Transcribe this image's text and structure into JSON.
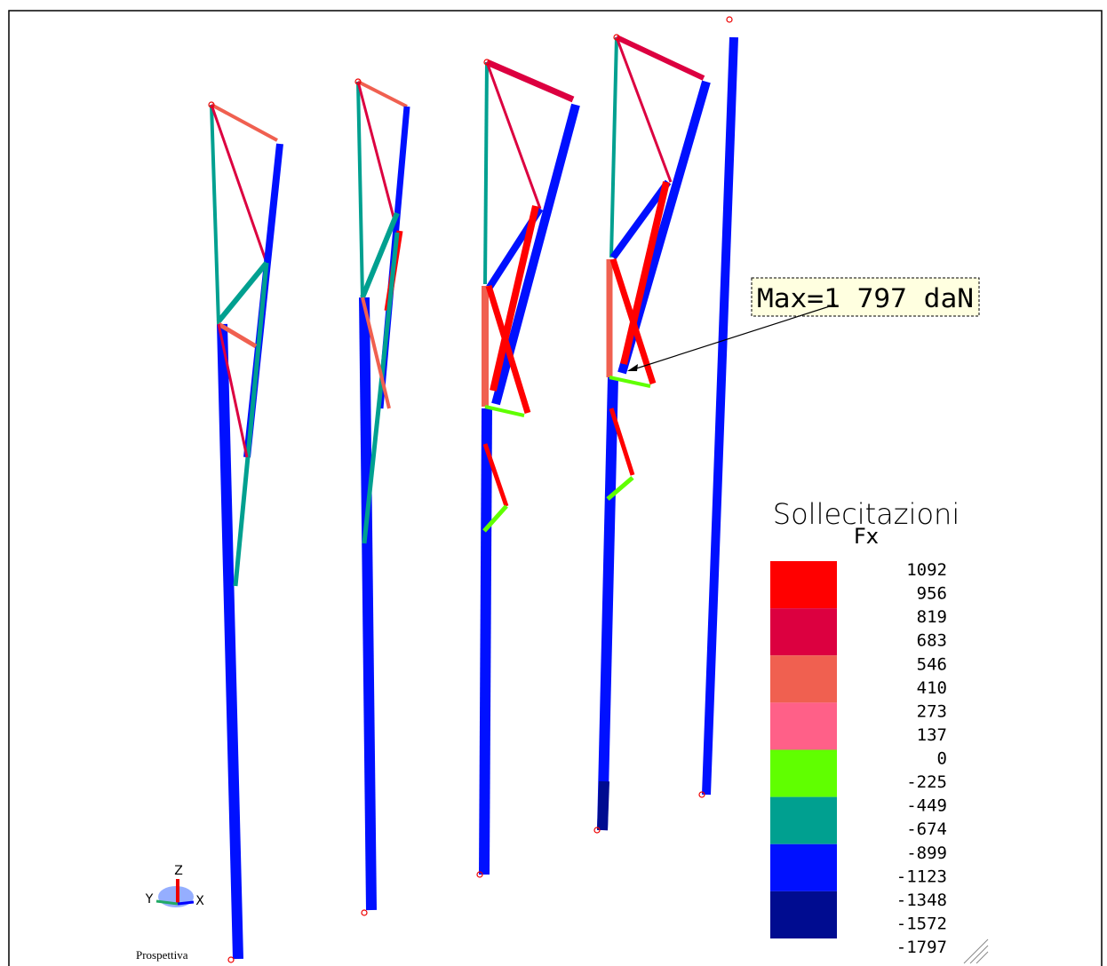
{
  "view": {
    "label": "Prospettiva",
    "axes": {
      "z": "Z",
      "y": "Y",
      "x": "X"
    }
  },
  "annotation": {
    "text": "Max=1 797 daN"
  },
  "legend": {
    "title": "Sollecitazioni",
    "subtitle": "Fx",
    "labels": [
      1092,
      956,
      819,
      683,
      546,
      410,
      273,
      137,
      0,
      -225,
      -449,
      -674,
      -899,
      -1123,
      -1348,
      -1572,
      -1797
    ],
    "colors": [
      "#ff0000",
      "#dc0040",
      "#f06050",
      "#ff6088",
      "#60ff00",
      "#00a090",
      "#0010ff",
      "#000c90"
    ]
  }
}
